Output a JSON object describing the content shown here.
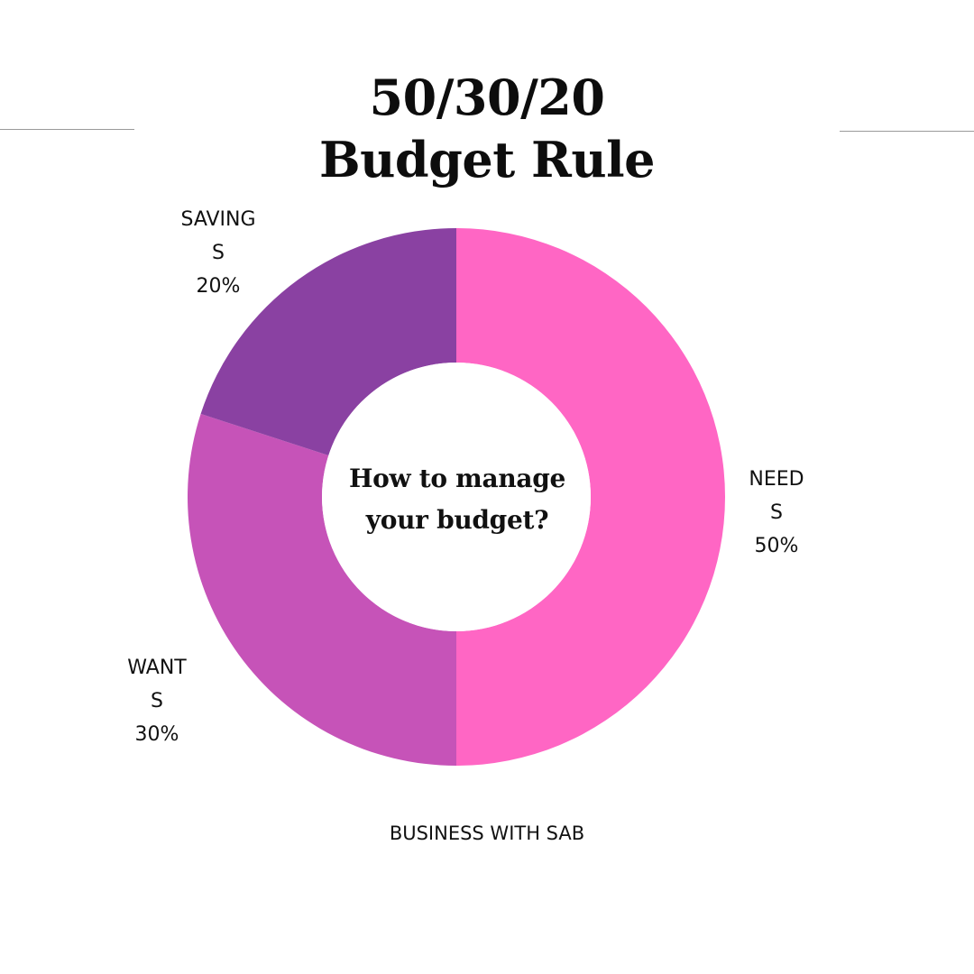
{
  "title": {
    "line1": "50/30/20",
    "line2": "Budget Rule"
  },
  "center_text": {
    "line1": "How to manage",
    "line2": "your budget?"
  },
  "footer": "BUSINESS WITH SAB",
  "chart_data": {
    "type": "pie",
    "donut": true,
    "slices": [
      {
        "key": "needs",
        "value": 50,
        "color": "#ff66c4",
        "label_lines": [
          "NEED",
          "S",
          "50%"
        ]
      },
      {
        "key": "wants",
        "value": 30,
        "color": "#c653b8",
        "label_lines": [
          "WANT",
          "S",
          "30%"
        ]
      },
      {
        "key": "savings",
        "value": 20,
        "color": "#8a41a2",
        "label_lines": [
          "SAVING",
          "S",
          "20%"
        ]
      }
    ]
  }
}
